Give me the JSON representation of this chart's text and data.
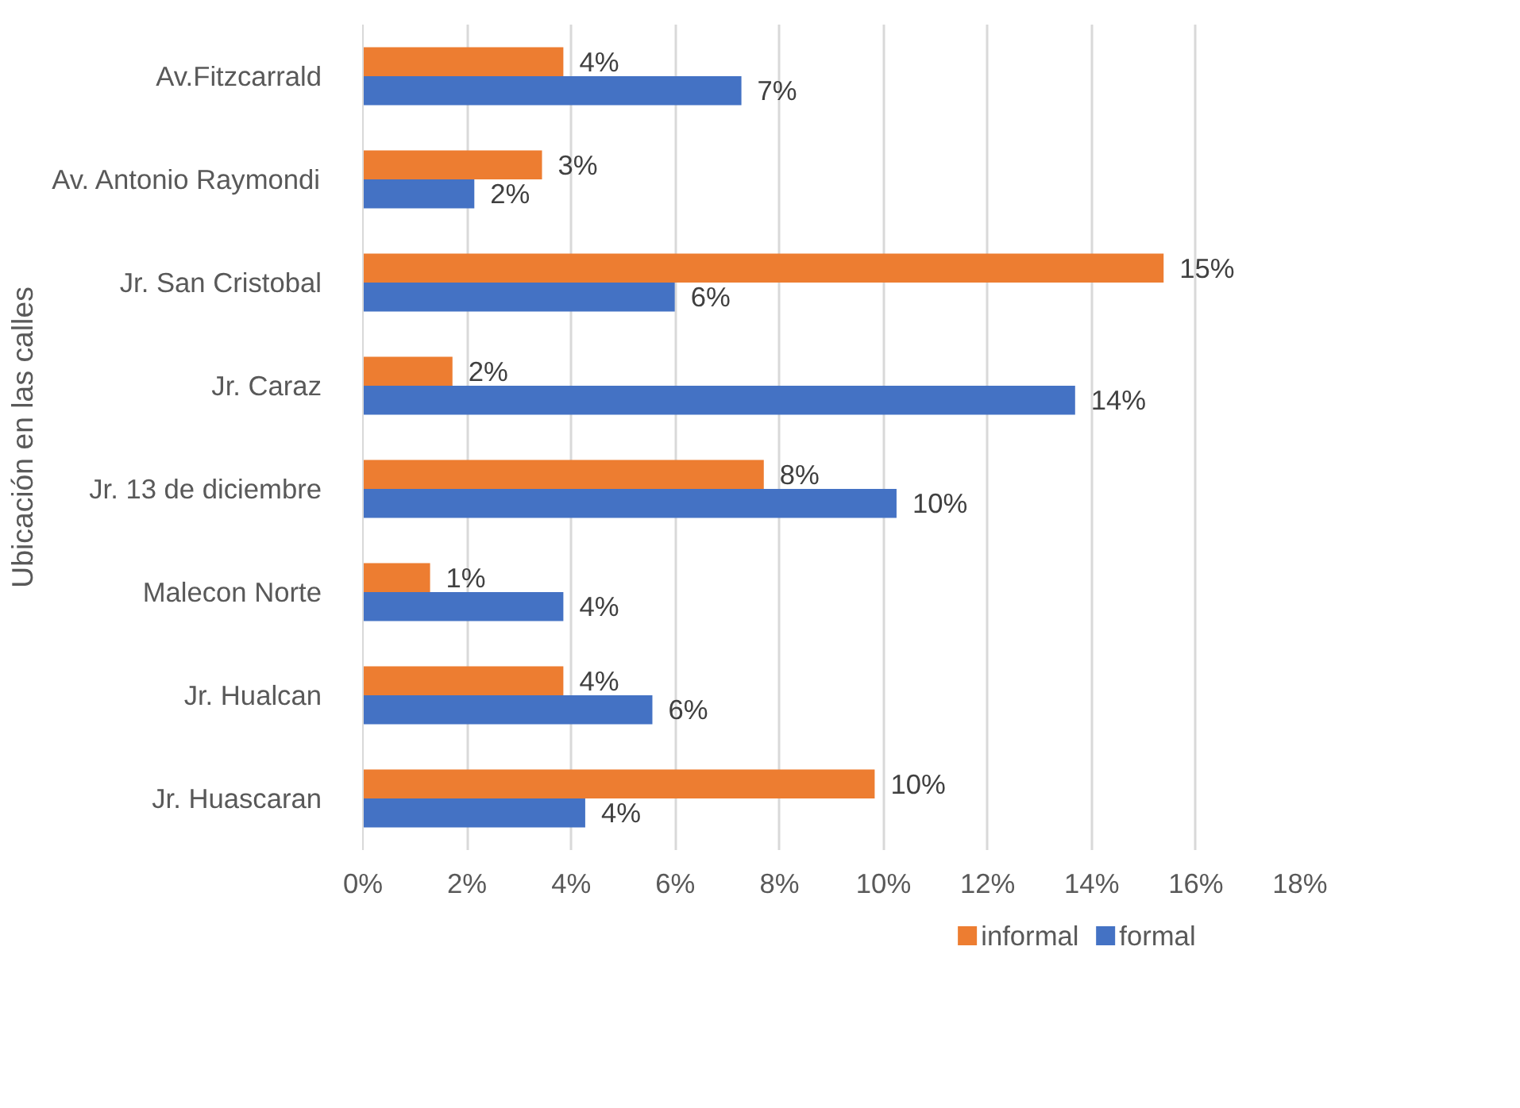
{
  "chart_data": {
    "type": "bar",
    "orientation": "horizontal",
    "ylabel": "Ubicación en las calles",
    "categories": [
      "Av.Fitzcarrald",
      "Av. Antonio Raymondi",
      "Jr. San Cristobal",
      "Jr. Caraz",
      "Jr. 13 de diciembre",
      "Malecon Norte",
      "Jr. Hualcan",
      "Jr. Huascaran"
    ],
    "series": [
      {
        "name": "informal",
        "color": "#ed7d31",
        "values": [
          3.85,
          3.44,
          15.38,
          1.72,
          7.7,
          1.29,
          3.85,
          9.83
        ],
        "value_labels": [
          "4%",
          "3%",
          "15%",
          "2%",
          "8%",
          "1%",
          "4%",
          "10%"
        ]
      },
      {
        "name": "formal",
        "color": "#4472c4",
        "values": [
          7.27,
          2.14,
          5.99,
          13.68,
          10.25,
          3.85,
          5.56,
          4.27
        ],
        "value_labels": [
          "7%",
          "2%",
          "6%",
          "14%",
          "10%",
          "4%",
          "6%",
          "4%"
        ]
      }
    ],
    "xlim": [
      0,
      18
    ],
    "xticks": [
      {
        "value": 0,
        "label": "0%"
      },
      {
        "value": 2,
        "label": "2%"
      },
      {
        "value": 4,
        "label": "4%"
      },
      {
        "value": 6,
        "label": "6%"
      },
      {
        "value": 8,
        "label": "8%"
      },
      {
        "value": 10,
        "label": "10%"
      },
      {
        "value": 12,
        "label": "12%"
      },
      {
        "value": 14,
        "label": "14%"
      },
      {
        "value": 16,
        "label": "16%"
      },
      {
        "value": 18,
        "label": "18%"
      }
    ],
    "grid": "x",
    "legend": "bottom"
  }
}
